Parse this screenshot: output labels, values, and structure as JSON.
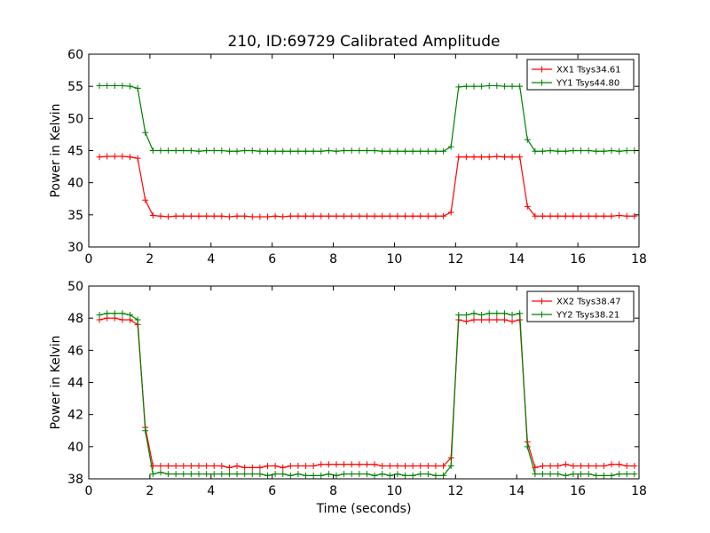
{
  "chart_data": [
    {
      "type": "line",
      "title": "210, ID:69729 Calibrated Amplitude",
      "xlabel": "",
      "ylabel": "Power in Kelvin",
      "xlim": [
        0,
        18
      ],
      "ylim": [
        30,
        60
      ],
      "xticks": [
        0,
        2,
        4,
        6,
        8,
        10,
        12,
        14,
        16,
        18
      ],
      "yticks": [
        30,
        35,
        40,
        45,
        50,
        55,
        60
      ],
      "grid": false,
      "legend_position": "top-right",
      "x": [
        0.35,
        0.6,
        0.85,
        1.1,
        1.35,
        1.6,
        1.85,
        2.1,
        2.35,
        2.6,
        2.85,
        3.1,
        3.35,
        3.6,
        3.85,
        4.1,
        4.35,
        4.6,
        4.85,
        5.1,
        5.35,
        5.6,
        5.85,
        6.1,
        6.35,
        6.6,
        6.85,
        7.1,
        7.35,
        7.6,
        7.85,
        8.1,
        8.35,
        8.6,
        8.85,
        9.1,
        9.35,
        9.6,
        9.85,
        10.1,
        10.35,
        10.6,
        10.85,
        11.1,
        11.35,
        11.6,
        11.85,
        12.1,
        12.35,
        12.6,
        12.85,
        13.1,
        13.35,
        13.6,
        13.85,
        14.1,
        14.35,
        14.6,
        14.85,
        15.1,
        15.35,
        15.6,
        15.85,
        16.1,
        16.35,
        16.6,
        16.85,
        17.1,
        17.35,
        17.6,
        17.85
      ],
      "series": [
        {
          "name": "XX1 Tsys34.61",
          "color": "#ff0000",
          "values": [
            44.0,
            44.1,
            44.1,
            44.1,
            44.0,
            43.8,
            37.3,
            34.9,
            34.8,
            34.7,
            34.8,
            34.8,
            34.8,
            34.8,
            34.8,
            34.8,
            34.8,
            34.7,
            34.8,
            34.8,
            34.7,
            34.7,
            34.7,
            34.8,
            34.7,
            34.8,
            34.8,
            34.8,
            34.8,
            34.8,
            34.8,
            34.8,
            34.8,
            34.8,
            34.8,
            34.8,
            34.8,
            34.8,
            34.8,
            34.8,
            34.8,
            34.8,
            34.8,
            34.8,
            34.8,
            34.8,
            35.4,
            44.0,
            44.0,
            44.0,
            44.0,
            44.0,
            44.1,
            44.0,
            44.0,
            44.0,
            36.3,
            34.8,
            34.8,
            34.8,
            34.8,
            34.8,
            34.8,
            34.8,
            34.8,
            34.8,
            34.8,
            34.8,
            34.9,
            34.8,
            34.8
          ]
        },
        {
          "name": "YY1 Tsys44.80",
          "color": "#008000",
          "values": [
            55.1,
            55.1,
            55.1,
            55.1,
            55.0,
            54.7,
            47.8,
            45.0,
            45.0,
            45.0,
            45.0,
            45.0,
            45.0,
            44.9,
            45.0,
            45.0,
            45.0,
            44.9,
            44.9,
            45.0,
            45.0,
            44.9,
            44.9,
            44.9,
            44.9,
            44.9,
            44.9,
            44.9,
            44.9,
            44.9,
            45.0,
            44.9,
            45.0,
            45.0,
            45.0,
            45.0,
            45.0,
            44.9,
            44.9,
            44.9,
            44.9,
            44.9,
            44.9,
            44.9,
            44.9,
            44.9,
            45.6,
            54.9,
            55.0,
            55.0,
            55.0,
            55.1,
            55.1,
            55.0,
            55.0,
            55.0,
            46.7,
            44.9,
            44.9,
            45.0,
            44.9,
            44.9,
            45.0,
            45.0,
            45.0,
            44.9,
            44.9,
            45.0,
            44.9,
            45.0,
            45.0
          ]
        }
      ]
    },
    {
      "type": "line",
      "title": "",
      "xlabel": "Time (seconds)",
      "ylabel": "Power in Kelvin",
      "xlim": [
        0,
        18
      ],
      "ylim": [
        38,
        50
      ],
      "xticks": [
        0,
        2,
        4,
        6,
        8,
        10,
        12,
        14,
        16,
        18
      ],
      "yticks": [
        38,
        40,
        42,
        44,
        46,
        48,
        50
      ],
      "grid": false,
      "legend_position": "top-right",
      "x": [
        0.35,
        0.6,
        0.85,
        1.1,
        1.35,
        1.6,
        1.85,
        2.1,
        2.35,
        2.6,
        2.85,
        3.1,
        3.35,
        3.6,
        3.85,
        4.1,
        4.35,
        4.6,
        4.85,
        5.1,
        5.35,
        5.6,
        5.85,
        6.1,
        6.35,
        6.6,
        6.85,
        7.1,
        7.35,
        7.6,
        7.85,
        8.1,
        8.35,
        8.6,
        8.85,
        9.1,
        9.35,
        9.6,
        9.85,
        10.1,
        10.35,
        10.6,
        10.85,
        11.1,
        11.35,
        11.6,
        11.85,
        12.1,
        12.35,
        12.6,
        12.85,
        13.1,
        13.35,
        13.6,
        13.85,
        14.1,
        14.35,
        14.6,
        14.85,
        15.1,
        15.35,
        15.6,
        15.85,
        16.1,
        16.35,
        16.6,
        16.85,
        17.1,
        17.35,
        17.6,
        17.85
      ],
      "series": [
        {
          "name": "XX2 Tsys38.47",
          "color": "#ff0000",
          "values": [
            47.9,
            48.0,
            48.0,
            47.9,
            47.9,
            47.6,
            41.2,
            38.8,
            38.8,
            38.8,
            38.8,
            38.8,
            38.8,
            38.8,
            38.8,
            38.8,
            38.8,
            38.7,
            38.8,
            38.7,
            38.7,
            38.7,
            38.8,
            38.8,
            38.7,
            38.8,
            38.8,
            38.8,
            38.8,
            38.9,
            38.9,
            38.9,
            38.9,
            38.9,
            38.9,
            38.9,
            38.9,
            38.8,
            38.8,
            38.8,
            38.8,
            38.8,
            38.8,
            38.8,
            38.8,
            38.8,
            39.3,
            47.9,
            47.8,
            47.9,
            47.9,
            47.9,
            47.9,
            47.9,
            47.8,
            47.9,
            40.3,
            38.7,
            38.8,
            38.8,
            38.8,
            38.9,
            38.8,
            38.8,
            38.8,
            38.8,
            38.8,
            38.9,
            38.9,
            38.8,
            38.8
          ]
        },
        {
          "name": "YY2 Tsys38.21",
          "color": "#008000",
          "values": [
            48.2,
            48.3,
            48.3,
            48.3,
            48.2,
            47.9,
            41.0,
            38.3,
            38.4,
            38.3,
            38.3,
            38.3,
            38.3,
            38.3,
            38.3,
            38.3,
            38.3,
            38.3,
            38.3,
            38.3,
            38.3,
            38.3,
            38.2,
            38.3,
            38.3,
            38.2,
            38.3,
            38.2,
            38.2,
            38.2,
            38.3,
            38.2,
            38.3,
            38.3,
            38.3,
            38.3,
            38.2,
            38.3,
            38.2,
            38.3,
            38.2,
            38.2,
            38.3,
            38.3,
            38.2,
            38.2,
            38.8,
            48.2,
            48.2,
            48.3,
            48.2,
            48.3,
            48.3,
            48.3,
            48.2,
            48.3,
            40.0,
            38.3,
            38.3,
            38.3,
            38.3,
            38.2,
            38.3,
            38.3,
            38.3,
            38.2,
            38.2,
            38.2,
            38.3,
            38.3,
            38.3
          ]
        }
      ]
    }
  ]
}
